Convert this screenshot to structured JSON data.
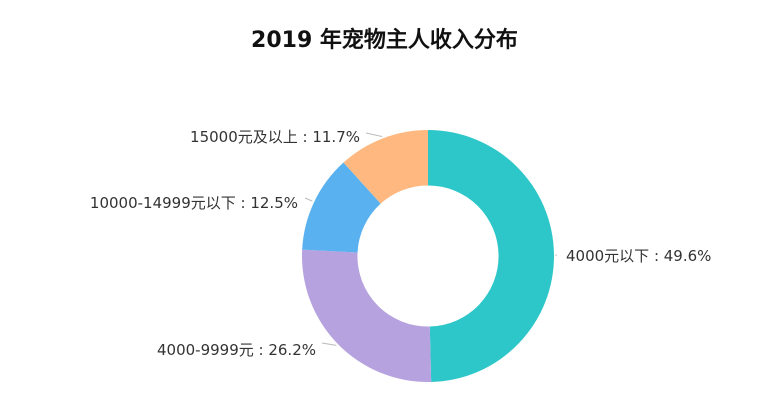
{
  "chart_data": {
    "type": "pie",
    "title": "2019 年宠物主人收入分布",
    "hole": 0.56,
    "legend": "none",
    "slices": [
      {
        "label": "4000元以下",
        "value": 49.6,
        "text": "4000元以下 : 49.6%",
        "color": "#2EC7C9"
      },
      {
        "label": "4000-9999元",
        "value": 26.2,
        "text": "4000-9999元 : 26.2%",
        "color": "#B6A2DE"
      },
      {
        "label": "10000-14999元以下",
        "value": 12.5,
        "text": "10000-14999元以下 : 12.5%",
        "color": "#5AB1EF"
      },
      {
        "label": "15000元及以上",
        "value": 11.7,
        "text": "15000元及以上 : 11.7%",
        "color": "#FFB980"
      }
    ]
  }
}
